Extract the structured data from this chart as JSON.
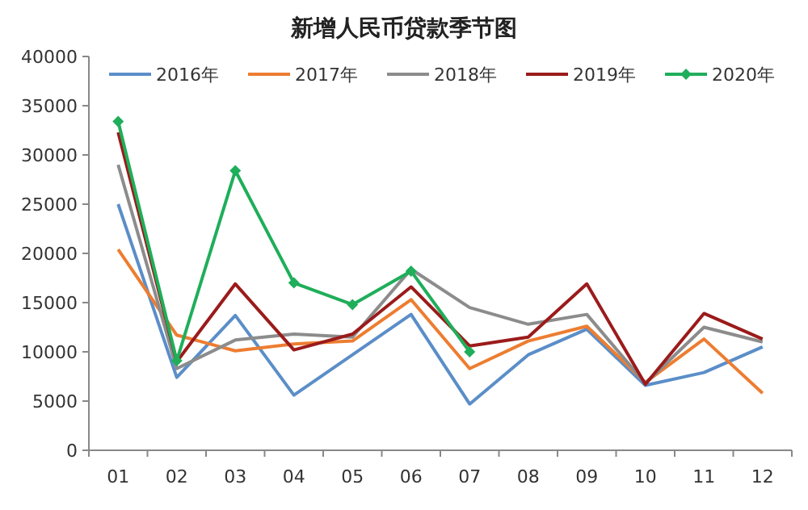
{
  "chart_data": {
    "type": "line",
    "title": "新增人民币贷款季节图",
    "categories": [
      "01",
      "02",
      "03",
      "04",
      "05",
      "06",
      "07",
      "08",
      "09",
      "10",
      "11",
      "12"
    ],
    "ylim": [
      0,
      40000
    ],
    "yticks": [
      0,
      5000,
      10000,
      15000,
      20000,
      25000,
      30000,
      35000,
      40000
    ],
    "grid": false,
    "legend": "top",
    "series": [
      {
        "name": "2016年",
        "color": "#5b8ec8",
        "values": [
          25000,
          7400,
          13700,
          5600,
          9700,
          13800,
          4700,
          9700,
          12300,
          6600,
          7900,
          10500
        ]
      },
      {
        "name": "2017年",
        "color": "#ed7d31",
        "values": [
          20400,
          11700,
          10100,
          10800,
          11100,
          15300,
          8300,
          11100,
          12600,
          6900,
          11300,
          5800
        ]
      },
      {
        "name": "2018年",
        "color": "#8c8c8c",
        "values": [
          29000,
          8300,
          11200,
          11800,
          11500,
          18400,
          14500,
          12800,
          13800,
          6800,
          12500,
          11000
        ]
      },
      {
        "name": "2019年",
        "color": "#9b1b1b",
        "values": [
          32300,
          9000,
          16900,
          10200,
          11800,
          16600,
          10600,
          11500,
          16900,
          6700,
          13900,
          11300
        ]
      },
      {
        "name": "2020年",
        "color": "#1fae5a",
        "marker": "diamond",
        "values": [
          33400,
          9100,
          28400,
          17000,
          14800,
          18200,
          10000,
          null,
          null,
          null,
          null,
          null
        ]
      }
    ]
  }
}
